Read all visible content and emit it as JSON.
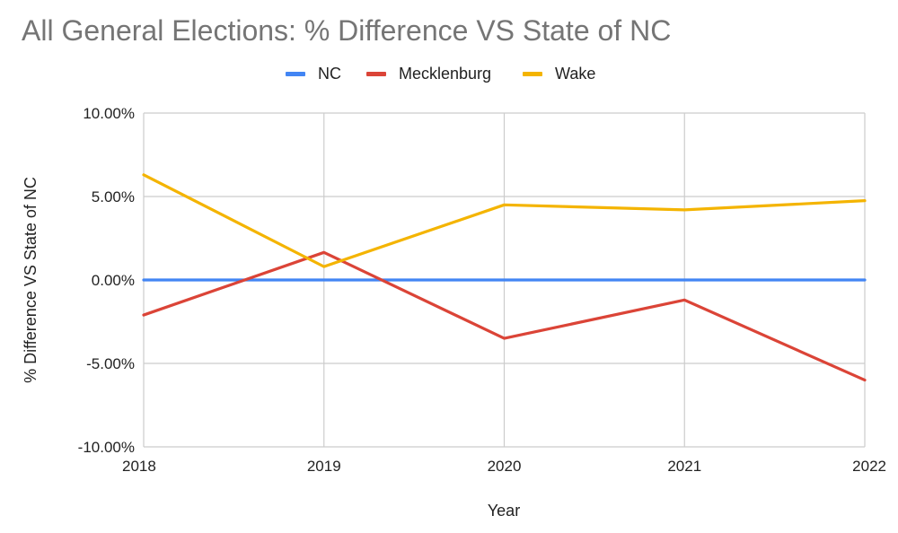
{
  "chart_data": {
    "type": "line",
    "title": "All General Elections: % Difference VS State of NC",
    "xlabel": "Year",
    "ylabel": "% Difference VS State of NC",
    "categories": [
      "2018",
      "2019",
      "2020",
      "2021",
      "2022"
    ],
    "ylim": [
      -10,
      10
    ],
    "yticks": [
      10,
      5,
      0,
      -5,
      -10
    ],
    "ytick_labels": [
      "10.00%",
      "5.00%",
      "0.00%",
      "-5.00%",
      "-10.00%"
    ],
    "grid": true,
    "legend_position": "top-center",
    "series": [
      {
        "name": "NC",
        "color": "#4285f4",
        "values": [
          0,
          0,
          0,
          0,
          0
        ]
      },
      {
        "name": "Mecklenburg",
        "color": "#db4437",
        "values": [
          -2.1,
          1.65,
          -3.5,
          -1.2,
          -6.0
        ]
      },
      {
        "name": "Wake",
        "color": "#f4b400",
        "values": [
          6.3,
          0.8,
          4.5,
          4.2,
          4.75
        ]
      }
    ]
  }
}
